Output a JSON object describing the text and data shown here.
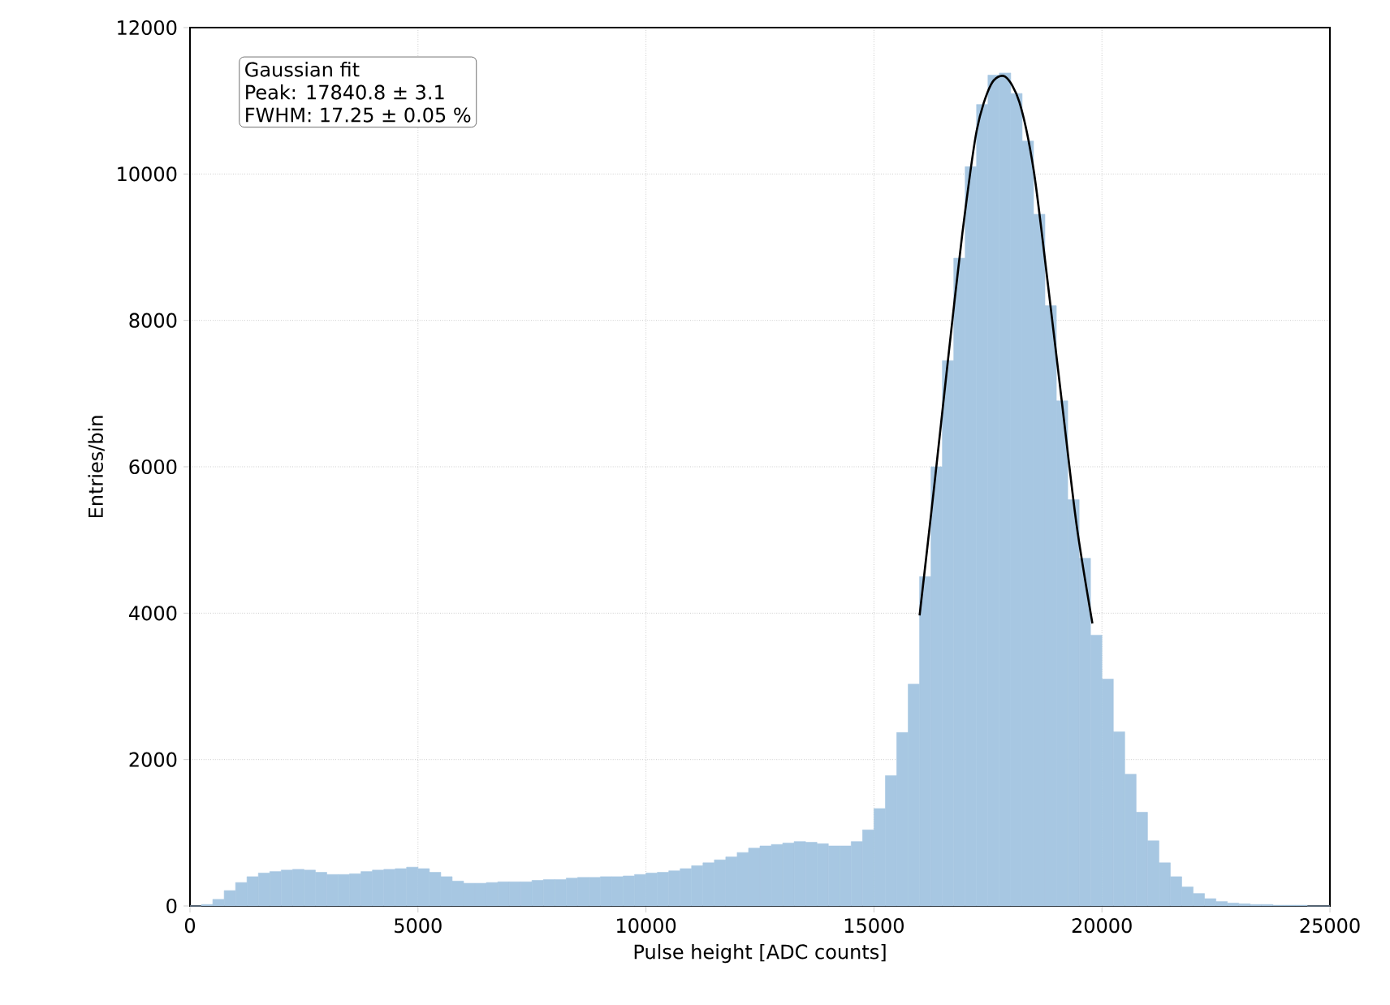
{
  "chart_data": {
    "type": "histogram",
    "xlabel": "Pulse height [ADC counts]",
    "ylabel": "Entries/bin",
    "annotations": [
      "Gaussian fit",
      "Peak: 17840.8 ± 3.1",
      "FWHM: 17.25 ± 0.05 %"
    ],
    "bins": [
      0,
      250,
      500,
      750,
      1000,
      1250,
      1500,
      1750,
      2000,
      2250,
      2500,
      2750,
      3000,
      3250,
      3500,
      3750,
      4000,
      4250,
      4500,
      4750,
      5000,
      5250,
      5500,
      5750,
      6000,
      6250,
      6500,
      6750,
      7000,
      7250,
      7500,
      7750,
      8000,
      8250,
      8500,
      8750,
      9000,
      9250,
      9500,
      9750,
      10000,
      10250,
      10500,
      10750,
      11000,
      11250,
      11500,
      11750,
      12000,
      12250,
      12500,
      12750,
      13000,
      13250,
      13500,
      13750,
      14000,
      14250,
      14500,
      14750,
      15000,
      15250,
      15500,
      15750,
      16000,
      16250,
      16500,
      16750,
      17000,
      17250,
      17500,
      17750,
      18000,
      18250,
      18500,
      18750,
      19000,
      19250,
      19500,
      19750,
      20000,
      20250,
      20500,
      20750,
      21000,
      21250,
      21500,
      21750,
      22000,
      22250,
      22500,
      22750,
      23000,
      23250,
      23500,
      23750,
      24000,
      24250,
      24500,
      24750,
      25000
    ],
    "values": [
      0,
      20,
      90,
      210,
      320,
      400,
      450,
      470,
      490,
      500,
      490,
      460,
      430,
      430,
      440,
      470,
      490,
      500,
      510,
      530,
      510,
      460,
      400,
      340,
      310,
      310,
      320,
      330,
      330,
      330,
      350,
      360,
      360,
      380,
      390,
      390,
      400,
      400,
      410,
      430,
      450,
      460,
      480,
      510,
      550,
      590,
      630,
      670,
      730,
      790,
      820,
      840,
      860,
      880,
      870,
      850,
      820,
      820,
      880,
      1040,
      1330,
      1780,
      2370,
      3030,
      4500,
      6000,
      7450,
      8850,
      10100,
      10950,
      11350,
      11380,
      11100,
      10450,
      9450,
      8200,
      6900,
      5550,
      4750,
      3700,
      3100,
      2380,
      1800,
      1280,
      890,
      590,
      400,
      260,
      170,
      100,
      60,
      40,
      30,
      20,
      20,
      10,
      10,
      10,
      0,
      0
    ],
    "color": "#a7c7e2",
    "series": [
      {
        "type": "line",
        "color": "#000000",
        "x": [
          16001,
          16314,
          16627,
          16939,
          17252,
          17565,
          17877,
          18190,
          18503,
          18816,
          19128,
          19441,
          19791
        ],
        "values": [
          3970,
          5690,
          7480,
          9190,
          10590,
          11220,
          11330,
          10980,
          10050,
          8490,
          6850,
          5220,
          3860
        ]
      }
    ],
    "xlim": [
      0,
      25000
    ],
    "xticks": [
      0,
      5000,
      10000,
      15000,
      20000,
      25000
    ],
    "ylim": [
      0,
      12000
    ],
    "yticks": [
      0,
      2000,
      4000,
      6000,
      8000,
      10000,
      12000
    ],
    "grid": true
  }
}
